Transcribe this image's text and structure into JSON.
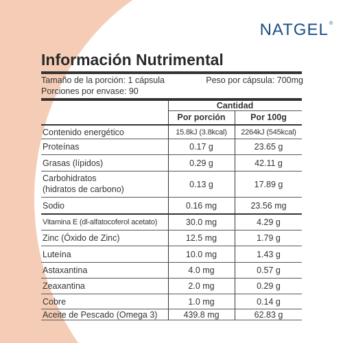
{
  "brand": {
    "name": "NATGEL",
    "mark": "®"
  },
  "title": "Información Nutrimental",
  "serving": {
    "size": "Tamaño de la porción:  1 cápsula",
    "weight": "Peso por cápsula: 700mg",
    "per_container": "Porciones por envase: 90"
  },
  "table": {
    "group_header": "Cantidad",
    "col1": "Por porción",
    "col2": "Por 100g",
    "rows": [
      {
        "name": "Contenido energético",
        "per_serving": "15.8kJ (3.8kcal)",
        "per_100g": "2264kJ (545kcal)"
      },
      {
        "name": "Proteínas",
        "per_serving": "0.17 g",
        "per_100g": "23.65 g"
      },
      {
        "name": "Grasas (lípidos)",
        "per_serving": "0.29 g",
        "per_100g": "42.11 g"
      },
      {
        "name": "Carbohidratos",
        "name2": "(hidratos de carbono)",
        "per_serving": "0.13 g",
        "per_100g": "17.89 g"
      },
      {
        "name": "Sodio",
        "per_serving": "0.16 mg",
        "per_100g": "23.56 mg"
      },
      {
        "name": "Vitamina E (dl-alfatocoferol acetato)",
        "per_serving": "30.0 mg",
        "per_100g": "4.29 g"
      },
      {
        "name": "Zinc (Óxido de Zinc)",
        "per_serving": "12.5 mg",
        "per_100g": "1.79 g"
      },
      {
        "name": "Luteína",
        "per_serving": "10.0 mg",
        "per_100g": "1.43 g"
      },
      {
        "name": "Astaxantina",
        "per_serving": "4.0 mg",
        "per_100g": "0.57 g"
      },
      {
        "name": "Zeaxantina",
        "per_serving": "2.0 mg",
        "per_100g": "0.29 g"
      },
      {
        "name": "Cobre",
        "per_serving": "1.0 mg",
        "per_100g": "0.14 g"
      },
      {
        "name": "Aceite de Pescado (Omega 3)",
        "per_serving": "439.8 mg",
        "per_100g": "62.83 g"
      }
    ]
  },
  "colors": {
    "brand": "#1c4f86",
    "peach": "#f5cdb7",
    "text": "#2e2e2e"
  }
}
